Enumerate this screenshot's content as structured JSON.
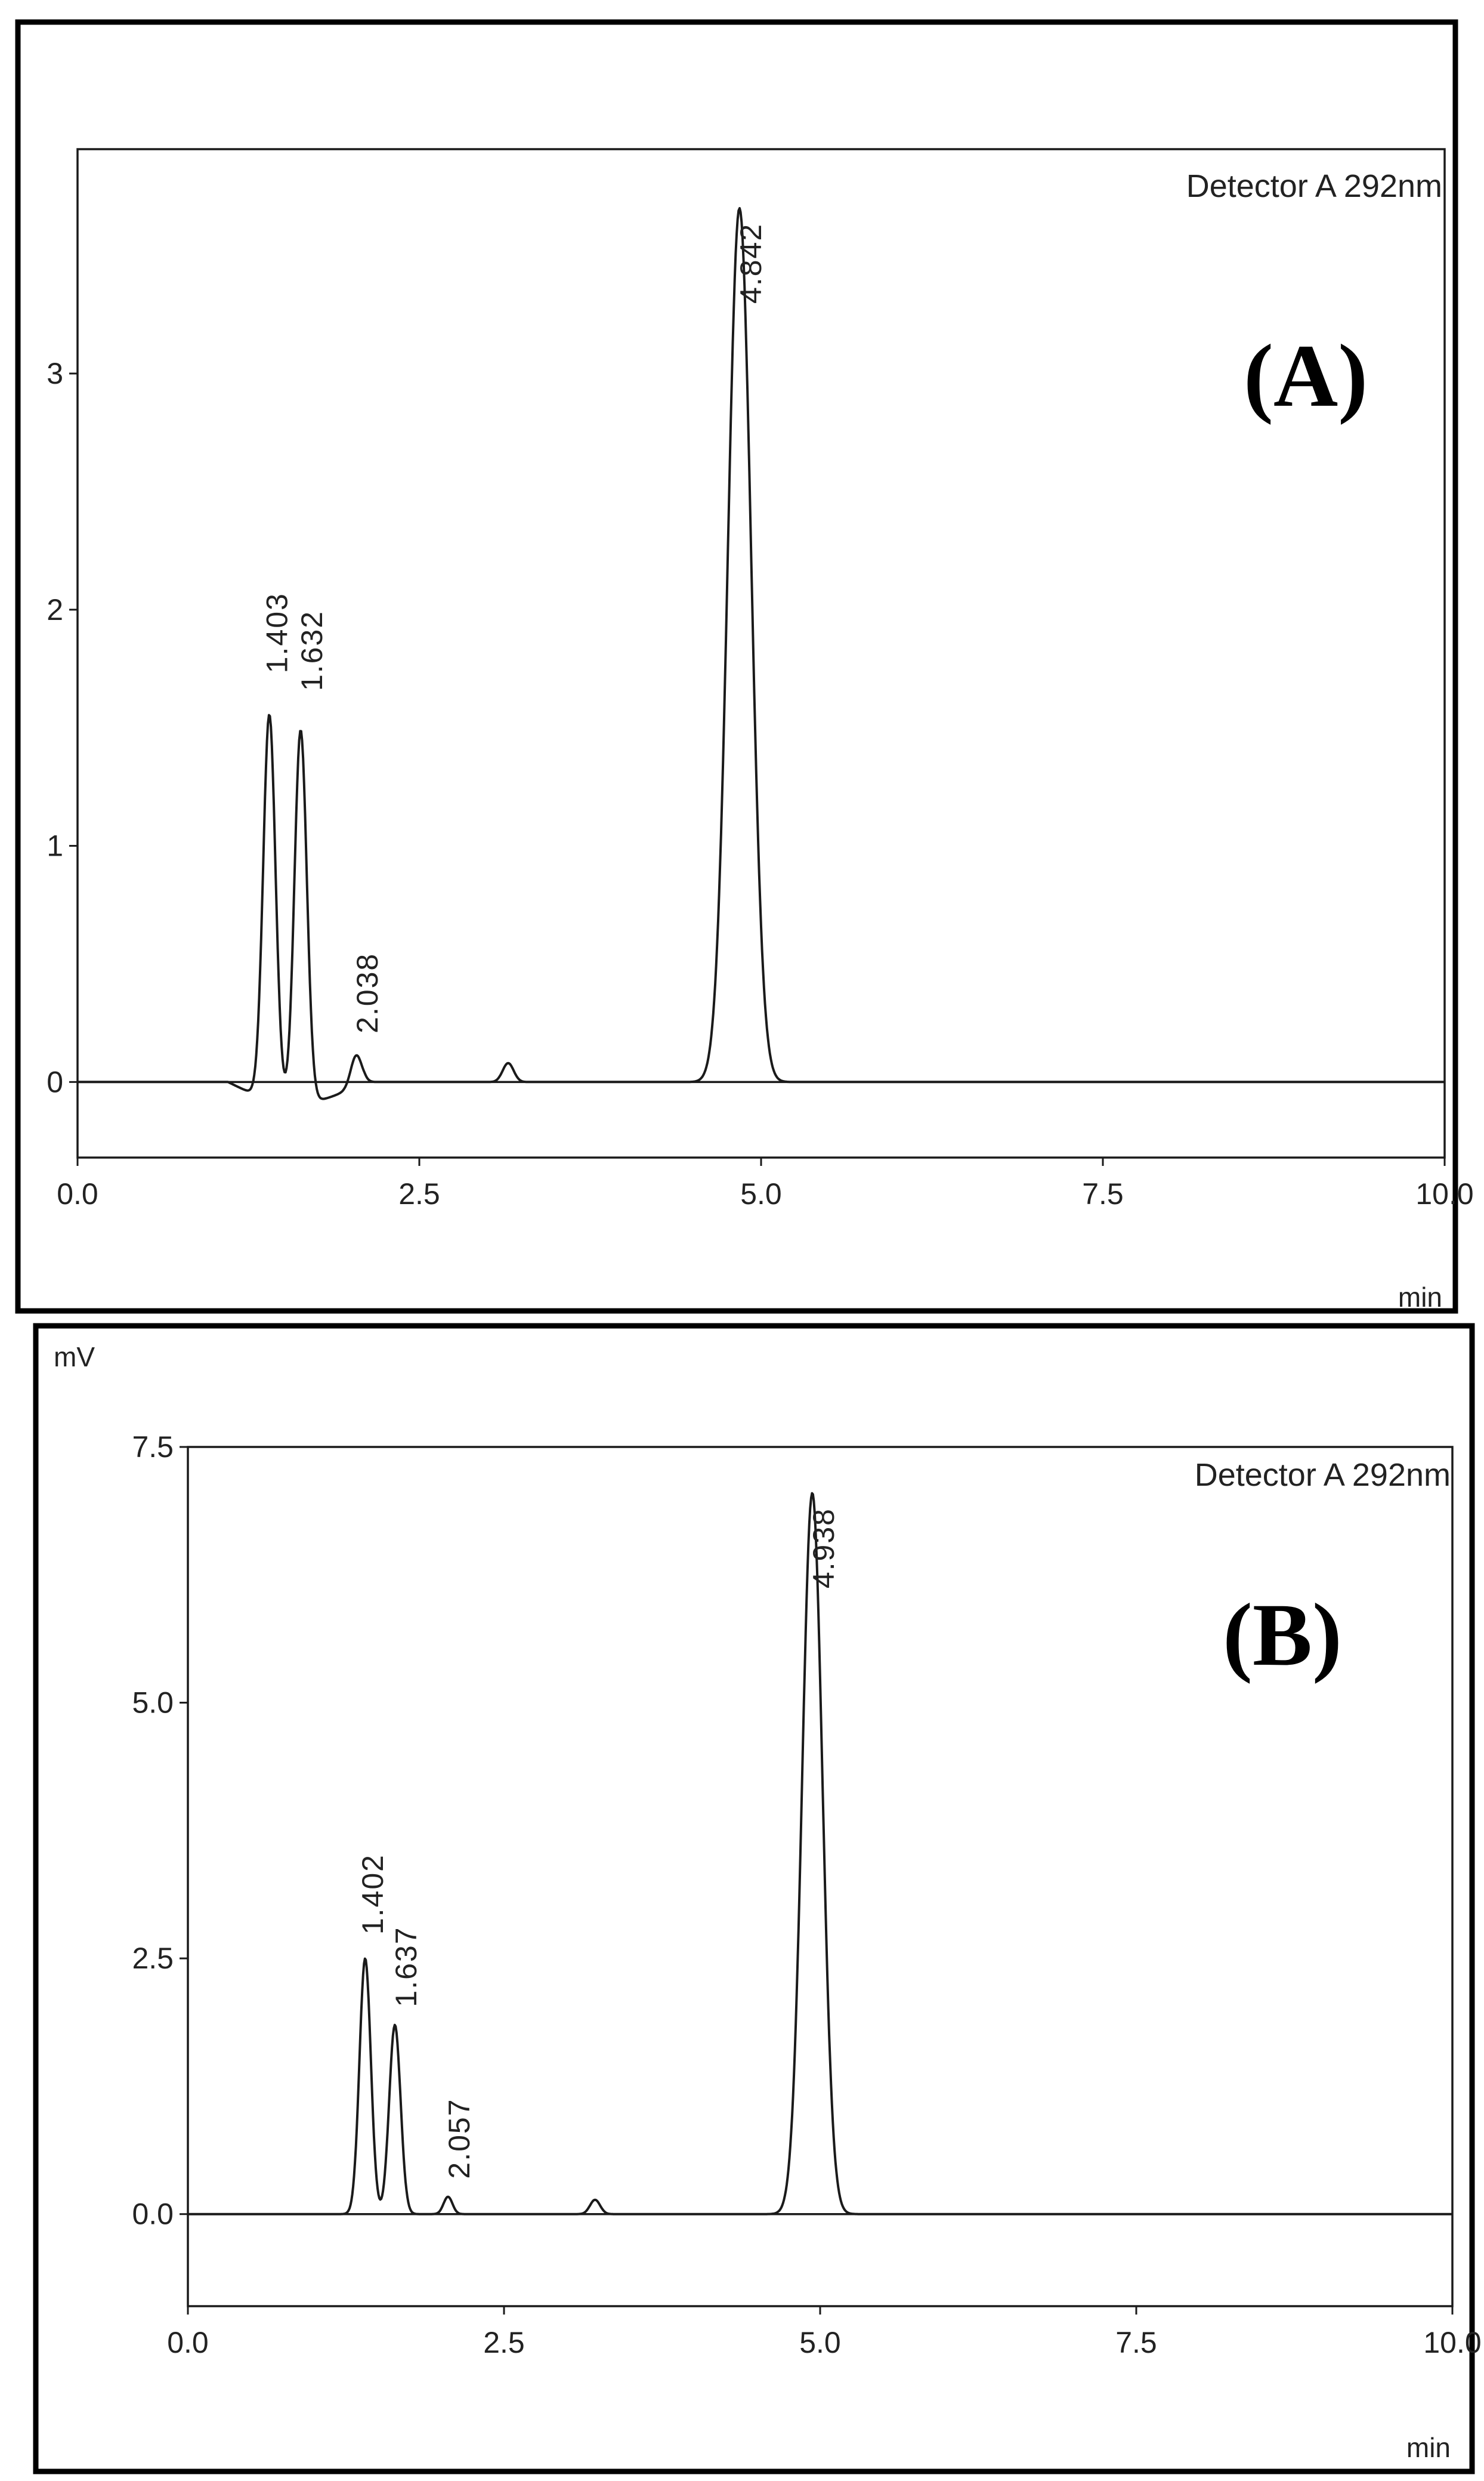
{
  "chart_data": [
    {
      "type": "line",
      "panel_label": "(A)",
      "legend": "Detector A 292nm",
      "xlabel": "min",
      "ylabel": "",
      "xlim": [
        0,
        10.0
      ],
      "ylim": [
        -0.32,
        3.95
      ],
      "x_ticks": [
        "0.0",
        "2.5",
        "5.0",
        "7.5",
        "10.0"
      ],
      "y_ticks": [
        "0",
        "1",
        "2",
        "3"
      ],
      "grid": false,
      "peaks": [
        {
          "rt": 1.403,
          "label": "1.403",
          "height": 1.63
        },
        {
          "rt": 1.632,
          "label": "1.632",
          "height": 1.58
        },
        {
          "rt": 2.038,
          "label": "2.038",
          "height": 0.13
        },
        {
          "rt": 3.15,
          "label": "",
          "height": 0.08
        },
        {
          "rt": 4.842,
          "label": "4.842",
          "height": 3.7
        }
      ]
    },
    {
      "type": "line",
      "panel_label": "(B)",
      "legend": "Detector A 292nm",
      "xlabel": "min",
      "ylabel": "mV",
      "xlim": [
        0,
        10.0
      ],
      "ylim": [
        -0.9,
        7.5
      ],
      "x_ticks": [
        "0.0",
        "2.5",
        "5.0",
        "7.5",
        "10.0"
      ],
      "y_ticks": [
        "0.0",
        "2.5",
        "5.0",
        "7.5"
      ],
      "grid": false,
      "peaks": [
        {
          "rt": 1.402,
          "label": "1.402",
          "height": 2.5
        },
        {
          "rt": 1.637,
          "label": "1.637",
          "height": 1.85
        },
        {
          "rt": 2.057,
          "label": "2.057",
          "height": 0.17
        },
        {
          "rt": 3.22,
          "label": "",
          "height": 0.14
        },
        {
          "rt": 4.938,
          "label": "4.938",
          "height": 7.05
        }
      ]
    }
  ]
}
